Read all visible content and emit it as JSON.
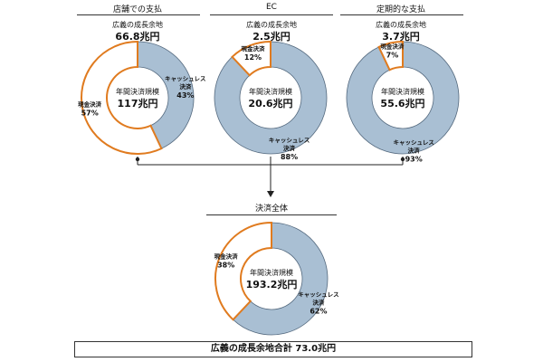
{
  "colors": {
    "cashless": "#a9bfd3",
    "cash": "#ffffff",
    "cash_border": "#e07b1f",
    "cashless_border": "#54697e",
    "text": "#111111"
  },
  "chart_data": [
    {
      "type": "pie",
      "panel_title": "店舗での支払",
      "growth_label": "広義の成長余地",
      "growth_value": "66.8兆円",
      "center_small": "年間決済規模",
      "center_big": "117兆円",
      "slices": [
        {
          "name": "キャッシュレス決済",
          "name_lines": [
            "キャッシュレス",
            "決済"
          ],
          "value": 43,
          "label": "43%"
        },
        {
          "name": "現金決済",
          "name_lines": [
            "現金決済"
          ],
          "value": 57,
          "label": "57%"
        }
      ]
    },
    {
      "type": "pie",
      "panel_title": "EC",
      "growth_label": "広義の成長余地",
      "growth_value": "2.5兆円",
      "center_small": "年間決済規模",
      "center_big": "20.6兆円",
      "slices": [
        {
          "name": "キャッシュレス決済",
          "name_lines": [
            "キャッシュレス",
            "決済"
          ],
          "value": 88,
          "label": "88%"
        },
        {
          "name": "現金決済",
          "name_lines": [
            "現金決済"
          ],
          "value": 12,
          "label": "12%"
        }
      ]
    },
    {
      "type": "pie",
      "panel_title": "定期的な支払",
      "growth_label": "広義の成長余地",
      "growth_value": "3.7兆円",
      "center_small": "年間決済規模",
      "center_big": "55.6兆円",
      "slices": [
        {
          "name": "キャッシュレス決済",
          "name_lines": [
            "キャッシュレス",
            "決済"
          ],
          "value": 93,
          "label": "93%"
        },
        {
          "name": "現金決済",
          "name_lines": [
            "現金決済"
          ],
          "value": 7,
          "label": "7%"
        }
      ]
    },
    {
      "type": "pie",
      "panel_title": "決済全体",
      "center_small": "年間決済規模",
      "center_big": "193.2兆円",
      "slices": [
        {
          "name": "キャッシュレス決済",
          "name_lines": [
            "キャッシュレス",
            "決済"
          ],
          "value": 62,
          "label": "62%"
        },
        {
          "name": "現金決済",
          "name_lines": [
            "現金決済"
          ],
          "value": 38,
          "label": "38%"
        }
      ]
    }
  ],
  "total": {
    "label": "広義の成長余地合計",
    "value": "73.0兆円"
  }
}
